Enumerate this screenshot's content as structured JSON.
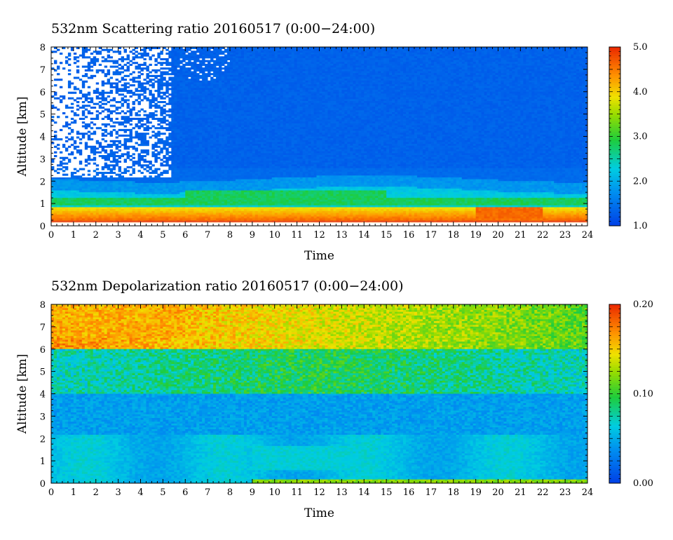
{
  "chart_data": [
    {
      "type": "heatmap",
      "title": "532nm Scattering ratio  20160517 (0:00−24:00)",
      "xlabel": "Time",
      "ylabel": "Altitude [km]",
      "x_ticks": [
        "0",
        "1",
        "2",
        "3",
        "4",
        "5",
        "6",
        "7",
        "8",
        "9",
        "10",
        "11",
        "12",
        "13",
        "14",
        "15",
        "16",
        "17",
        "18",
        "19",
        "20",
        "21",
        "22",
        "23",
        "24"
      ],
      "y_ticks": [
        "0",
        "1",
        "2",
        "3",
        "4",
        "5",
        "6",
        "7",
        "8"
      ],
      "xlim": [
        0,
        24
      ],
      "ylim": [
        0,
        8
      ],
      "colorbar": {
        "min": 1.0,
        "max": 5.0,
        "ticks": [
          "1.0",
          "2.0",
          "3.0",
          "4.0",
          "5.0"
        ]
      },
      "features": [
        {
          "kind": "no-data region",
          "time_range": [
            0,
            5.4
          ],
          "altitude_range": [
            2.2,
            8
          ]
        },
        {
          "kind": "strong near-surface layer",
          "value": "4.5-5.0",
          "altitude_range": [
            0.3,
            0.8
          ],
          "time_range": [
            0,
            24
          ]
        },
        {
          "kind": "aerosol layer",
          "value": "2.5-3.0",
          "altitude_range": [
            0.8,
            1.6
          ],
          "time_range": [
            0,
            24
          ]
        },
        {
          "kind": "elevated peak",
          "value": "5.0",
          "time_range": [
            19,
            22
          ],
          "altitude_range": [
            0.4,
            0.8
          ]
        },
        {
          "kind": "free troposphere background",
          "value": "1.2-1.6",
          "altitude_range": [
            2,
            8
          ]
        }
      ]
    },
    {
      "type": "heatmap",
      "title": "532nm Depolarization ratio  20160517 (0:00−24:00)",
      "xlabel": "Time",
      "ylabel": "Altitude [km]",
      "x_ticks": [
        "0",
        "1",
        "2",
        "3",
        "4",
        "5",
        "6",
        "7",
        "8",
        "9",
        "10",
        "11",
        "12",
        "13",
        "14",
        "15",
        "16",
        "17",
        "18",
        "19",
        "20",
        "21",
        "22",
        "23",
        "24"
      ],
      "y_ticks": [
        "0",
        "1",
        "2",
        "3",
        "4",
        "5",
        "6",
        "7",
        "8"
      ],
      "xlim": [
        0,
        24
      ],
      "ylim": [
        0,
        8
      ],
      "colorbar": {
        "min": 0.0,
        "max": 0.2,
        "ticks": [
          "0.00",
          "0.10",
          "0.20"
        ]
      },
      "features": [
        {
          "kind": "high depolarization aloft",
          "value": "0.16-0.20",
          "altitude_range": [
            6,
            8
          ],
          "time_range": [
            0,
            6
          ]
        },
        {
          "kind": "moderate mid levels",
          "value": "0.08-0.12",
          "altitude_range": [
            4,
            7
          ],
          "time_range": [
            0,
            24
          ]
        },
        {
          "kind": "boundary layer",
          "value": "0.04-0.07",
          "altitude_range": [
            0.2,
            2.2
          ],
          "time_range": [
            0,
            24
          ]
        },
        {
          "kind": "surface layer",
          "value": "0.10-0.14",
          "altitude_range": [
            0,
            0.2
          ],
          "time_range": [
            9,
            24
          ]
        }
      ]
    }
  ]
}
